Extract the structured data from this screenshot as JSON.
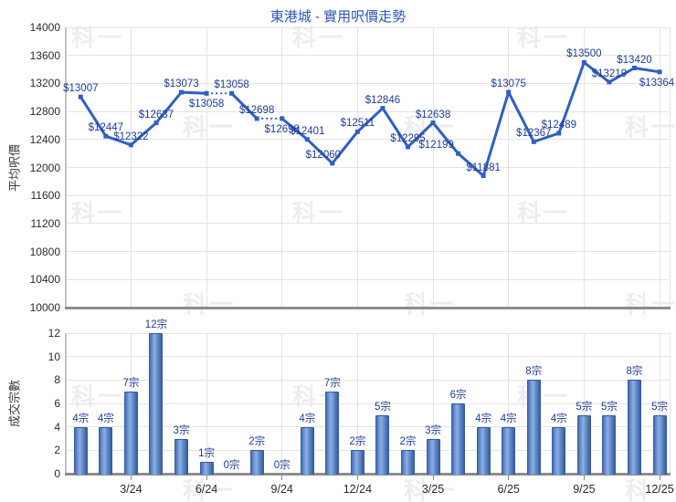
{
  "title": "東港城 - 實用呎價走勢",
  "watermark": {
    "text": "科一"
  },
  "colors": {
    "title": "#2d56b8",
    "line": "#2f5fc4",
    "marker": "#2f5fc4",
    "data_label": "#1e3c96",
    "grid": "#e4e4e4",
    "axis": "#8d8d8d",
    "tick_text": "#2b2b2b",
    "bar_gradient": [
      "#33599c",
      "#5d85c6",
      "#8cb0e4",
      "#6b94d2",
      "#2f5694"
    ]
  },
  "chart_data": [
    {
      "type": "line",
      "title": "東港城 - 實用呎價走勢",
      "xlabel": "",
      "ylabel": "平均呎價",
      "ylim": [
        10000,
        14000
      ],
      "yticks": [
        10000,
        10400,
        10800,
        11200,
        11600,
        12000,
        12400,
        12800,
        13200,
        13600,
        14000
      ],
      "grid": "on",
      "value_prefix": "$",
      "values": [
        13007,
        12447,
        12322,
        12637,
        13073,
        13058,
        13058,
        12698,
        12698,
        12401,
        12060,
        12511,
        12846,
        12295,
        12638,
        12199,
        11881,
        13075,
        12367,
        12489,
        13500,
        13219,
        13420,
        13364
      ],
      "point_labels": [
        "$13007",
        "$12447",
        "$12322",
        "$12637",
        "$13073",
        "$13058",
        "$13058",
        "$12698",
        "$12698",
        "$12401",
        "$12060",
        "$12511",
        "$12846",
        "$12295",
        "$12638",
        "$12199",
        "$11881",
        "$13075",
        "$12367",
        "$12489",
        "$13500",
        "$13219",
        "$13420",
        "$13364"
      ],
      "dotted_segments": [
        [
          5,
          6
        ],
        [
          7,
          8
        ]
      ],
      "label_overrides": {
        "5": {
          "pos": "below"
        },
        "8": {
          "pos": "below"
        },
        "10": {
          "dx": -10
        },
        "15": {
          "dx": -24
        },
        "23": {
          "pos": "below",
          "dx": -3
        }
      }
    },
    {
      "type": "bar",
      "title": "",
      "xlabel": "",
      "ylabel": "成交宗數",
      "ylim": [
        0,
        12
      ],
      "yticks": [
        0,
        2,
        4,
        6,
        8,
        10,
        12
      ],
      "grid": "on",
      "value_suffix": "宗",
      "values": [
        4,
        4,
        7,
        12,
        3,
        1,
        0,
        2,
        0,
        4,
        7,
        2,
        5,
        2,
        3,
        6,
        4,
        4,
        8,
        4,
        5,
        5,
        8,
        5
      ],
      "bar_labels": [
        "4宗",
        "4宗",
        "7宗",
        "12宗",
        "3宗",
        "1宗",
        "0宗",
        "2宗",
        "0宗",
        "4宗",
        "7宗",
        "2宗",
        "5宗",
        "2宗",
        "3宗",
        "6宗",
        "4宗",
        "4宗",
        "8宗",
        "4宗",
        "5宗",
        "5宗",
        "8宗",
        "5宗"
      ],
      "x_tick_labels": [
        "3/24",
        "6/24",
        "9/24",
        "12/24",
        "3/25",
        "6/25",
        "9/25",
        "12/25"
      ],
      "x_tick_indices": [
        2,
        5,
        8,
        11,
        14,
        17,
        20,
        23
      ]
    }
  ]
}
